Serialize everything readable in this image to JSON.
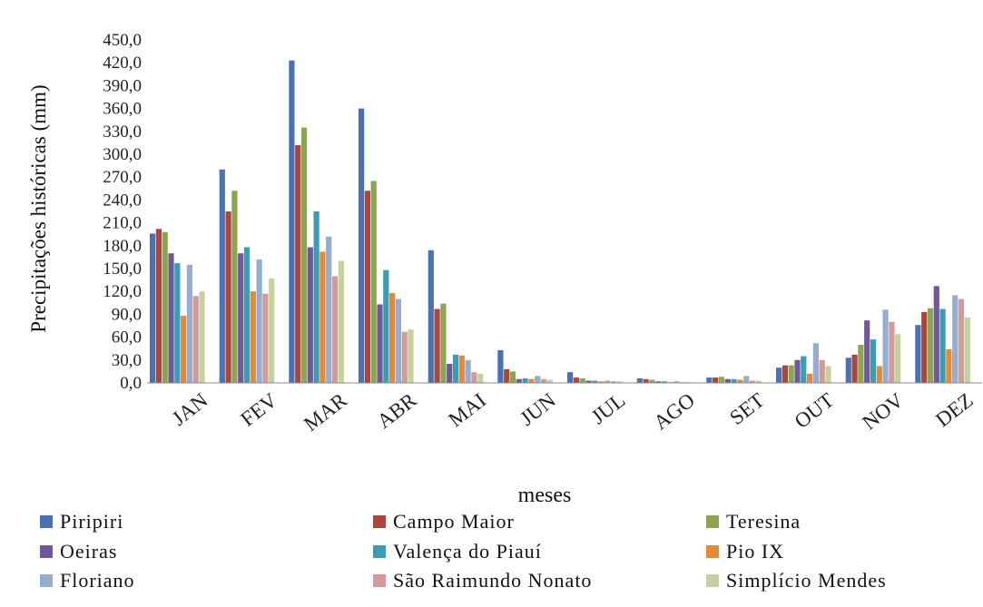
{
  "chart_data": {
    "type": "bar",
    "title": "",
    "xlabel": "meses",
    "ylabel": "Precipitações históricas (mm)",
    "ylim": [
      0,
      450
    ],
    "yticks": [
      "0,0",
      "30,0",
      "60,0",
      "90,0",
      "120,0",
      "150,0",
      "180,0",
      "210,0",
      "240,0",
      "270,0",
      "300,0",
      "330,0",
      "360,0",
      "390,0",
      "420,0",
      "450,0"
    ],
    "grid": false,
    "legend_position": "bottom",
    "categories": [
      "JAN",
      "FEV",
      "MAR",
      "ABR",
      "MAI",
      "JUN",
      "JUL",
      "AGO",
      "SET",
      "OUT",
      "NOV",
      "DEZ"
    ],
    "series": [
      {
        "name": "Piripiri",
        "color": "#4a72b0",
        "values": [
          196,
          280,
          423,
          360,
          174,
          43,
          14,
          6,
          7,
          20,
          33,
          76
        ]
      },
      {
        "name": "Campo Maior",
        "color": "#a9473f",
        "values": [
          202,
          225,
          312,
          252,
          97,
          18,
          7,
          5,
          7,
          23,
          37,
          93
        ]
      },
      {
        "name": "Teresina",
        "color": "#8ba552",
        "values": [
          198,
          252,
          335,
          265,
          104,
          15,
          6,
          4,
          8,
          23,
          50,
          98
        ]
      },
      {
        "name": "Oeiras",
        "color": "#6f5a97",
        "values": [
          170,
          170,
          178,
          103,
          25,
          5,
          3,
          2,
          5,
          30,
          82,
          127
        ]
      },
      {
        "name": "Valença do Piauí",
        "color": "#3b9db3",
        "values": [
          157,
          178,
          225,
          148,
          37,
          6,
          3,
          2,
          5,
          35,
          57,
          97
        ]
      },
      {
        "name": "Pio IX",
        "color": "#e3893a",
        "values": [
          88,
          120,
          172,
          118,
          36,
          5,
          2,
          1,
          4,
          12,
          22,
          44
        ]
      },
      {
        "name": "Floriano",
        "color": "#96acd1",
        "values": [
          155,
          162,
          192,
          110,
          30,
          9,
          3,
          2,
          9,
          52,
          96,
          115
        ]
      },
      {
        "name": "São Raimundo Nonato",
        "color": "#d19b99",
        "values": [
          114,
          117,
          140,
          67,
          14,
          5,
          2,
          1,
          3,
          30,
          80,
          110
        ]
      },
      {
        "name": "Simplício Mendes",
        "color": "#c3d29f",
        "values": [
          120,
          137,
          160,
          70,
          12,
          4,
          2,
          1,
          3,
          22,
          64,
          86
        ]
      }
    ]
  }
}
